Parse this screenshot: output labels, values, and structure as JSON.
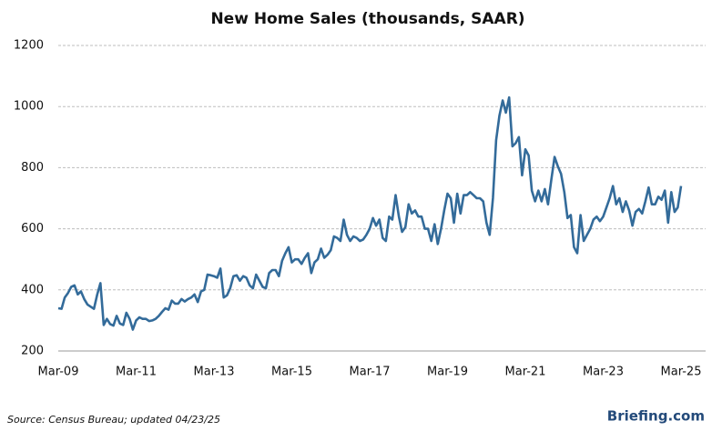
{
  "chart_data": {
    "type": "line",
    "title": "New Home Sales (thousands, SAAR)",
    "source": "Source: Census Bureau; updated 04/23/25",
    "brand": "Briefing.com",
    "categories": [
      "Mar-09",
      null,
      null,
      null,
      null,
      null,
      null,
      null,
      null,
      null,
      null,
      null,
      null,
      null,
      null,
      null,
      null,
      null,
      null,
      null,
      null,
      null,
      null,
      null,
      "Mar-11",
      null,
      null,
      null,
      null,
      null,
      null,
      null,
      null,
      null,
      null,
      null,
      null,
      null,
      null,
      null,
      null,
      null,
      null,
      null,
      null,
      null,
      null,
      null,
      "Mar-13",
      null,
      null,
      null,
      null,
      null,
      null,
      null,
      null,
      null,
      null,
      null,
      null,
      null,
      null,
      null,
      null,
      null,
      null,
      null,
      null,
      null,
      null,
      null,
      "Mar-15",
      null,
      null,
      null,
      null,
      null,
      null,
      null,
      null,
      null,
      null,
      null,
      null,
      null,
      null,
      null,
      null,
      null,
      null,
      null,
      null,
      null,
      null,
      null,
      "Mar-17",
      null,
      null,
      null,
      null,
      null,
      null,
      null,
      null,
      null,
      null,
      null,
      null,
      null,
      null,
      null,
      null,
      null,
      null,
      null,
      null,
      null,
      null,
      null,
      "Mar-19",
      null,
      null,
      null,
      null,
      null,
      null,
      null,
      null,
      null,
      null,
      null,
      null,
      null,
      null,
      null,
      null,
      null,
      null,
      null,
      null,
      null,
      null,
      null,
      "Mar-21",
      null,
      null,
      null,
      null,
      null,
      null,
      null,
      null,
      null,
      null,
      null,
      null,
      null,
      null,
      null,
      null,
      null,
      null,
      null,
      null,
      null,
      null,
      null,
      "Mar-23",
      null,
      null,
      null,
      null,
      null,
      null,
      null,
      null,
      null,
      null,
      null,
      null,
      null,
      null,
      null,
      null,
      null,
      null,
      null,
      null,
      null,
      null,
      null,
      "Mar-25"
    ],
    "series": [
      {
        "name": "New Home Sales",
        "color": "#336b9a",
        "values": [
          340,
          338,
          375,
          390,
          410,
          415,
          385,
          395,
          370,
          352,
          345,
          338,
          385,
          422,
          285,
          305,
          288,
          283,
          315,
          290,
          285,
          325,
          305,
          270,
          300,
          310,
          305,
          305,
          298,
          300,
          305,
          315,
          328,
          340,
          335,
          365,
          355,
          355,
          370,
          362,
          370,
          375,
          385,
          360,
          395,
          400,
          450,
          448,
          445,
          440,
          470,
          375,
          382,
          405,
          445,
          448,
          430,
          445,
          440,
          415,
          405,
          450,
          430,
          410,
          405,
          455,
          465,
          465,
          445,
          495,
          520,
          540,
          490,
          500,
          500,
          485,
          505,
          520,
          455,
          490,
          500,
          535,
          505,
          515,
          530,
          575,
          570,
          560,
          630,
          580,
          560,
          575,
          570,
          560,
          565,
          580,
          600,
          635,
          610,
          630,
          570,
          560,
          640,
          630,
          710,
          640,
          590,
          605,
          680,
          650,
          660,
          640,
          640,
          600,
          600,
          560,
          615,
          550,
          600,
          660,
          715,
          700,
          620,
          715,
          650,
          710,
          710,
          720,
          710,
          700,
          700,
          690,
          620,
          580,
          700,
          890,
          970,
          1020,
          980,
          1030,
          870,
          880,
          900,
          775,
          860,
          840,
          725,
          690,
          725,
          690,
          730,
          680,
          760,
          835,
          805,
          780,
          720,
          635,
          645,
          540,
          520,
          645,
          560,
          580,
          600,
          630,
          640,
          625,
          640,
          670,
          700,
          740,
          680,
          700,
          655,
          690,
          660,
          610,
          655,
          665,
          650,
          690,
          735,
          680,
          680,
          705,
          695,
          725,
          620,
          720,
          655,
          670,
          740
        ]
      }
    ],
    "ylim": [
      200,
      1200
    ],
    "yticks": [
      200,
      400,
      600,
      800,
      1000,
      1200
    ],
    "grid": true
  }
}
